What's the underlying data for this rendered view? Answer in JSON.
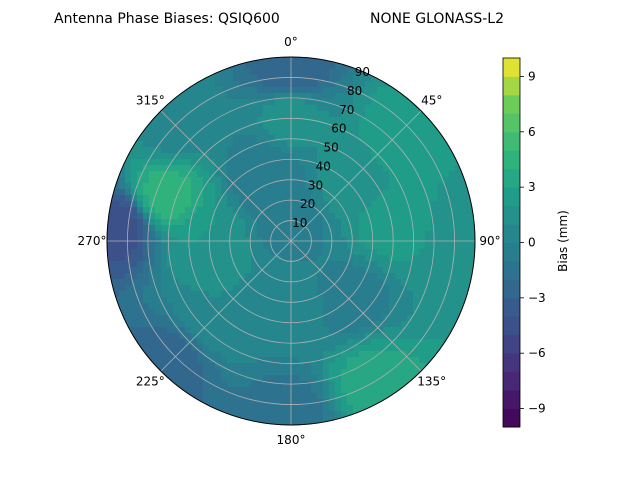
{
  "chart_data": {
    "type": "heatmap",
    "projection": "polar",
    "title": "Antenna Phase Biases: QSIQ600",
    "subtitle": "NONE GLONASS-L2",
    "theta_ticks": [
      "0°",
      "45°",
      "90°",
      "135°",
      "180°",
      "225°",
      "270°",
      "315°"
    ],
    "theta_tick_angles": [
      0,
      45,
      90,
      135,
      180,
      225,
      270,
      315
    ],
    "radial_ticks": [
      "10",
      "20",
      "30",
      "40",
      "50",
      "60",
      "70",
      "80",
      "90"
    ],
    "radial_tick_values": [
      10,
      20,
      30,
      40,
      50,
      60,
      70,
      80,
      90
    ],
    "rlim": [
      0,
      90
    ],
    "grid": true,
    "colorbar": {
      "label": "Bias (mm)",
      "range": [
        -10,
        10
      ],
      "ticks": [
        "−9",
        "−6",
        "−3",
        "0",
        "3",
        "6",
        "9"
      ],
      "tick_values": [
        -9,
        -6,
        -3,
        0,
        3,
        6,
        9
      ],
      "levels": 20,
      "colormap": "viridis"
    },
    "bias_field": [
      {
        "azimuth": 0,
        "elevation": 10,
        "bias": -0.5
      },
      {
        "azimuth": 0,
        "elevation": 60,
        "bias": 1.5
      },
      {
        "azimuth": 0,
        "elevation": 85,
        "bias": -3.0
      },
      {
        "azimuth": 45,
        "elevation": 40,
        "bias": 1.5
      },
      {
        "azimuth": 45,
        "elevation": 75,
        "bias": 2.5
      },
      {
        "azimuth": 80,
        "elevation": 50,
        "bias": 2.5
      },
      {
        "azimuth": 90,
        "elevation": 85,
        "bias": 1.5
      },
      {
        "azimuth": 135,
        "elevation": 40,
        "bias": -0.5
      },
      {
        "azimuth": 150,
        "elevation": 80,
        "bias": 3.5
      },
      {
        "azimuth": 180,
        "elevation": 30,
        "bias": 0.5
      },
      {
        "azimuth": 180,
        "elevation": 85,
        "bias": -1.5
      },
      {
        "azimuth": 225,
        "elevation": 50,
        "bias": 1.0
      },
      {
        "azimuth": 225,
        "elevation": 85,
        "bias": -2.5
      },
      {
        "azimuth": 270,
        "elevation": 40,
        "bias": 2.0
      },
      {
        "azimuth": 275,
        "elevation": 85,
        "bias": -4.5
      },
      {
        "azimuth": 290,
        "elevation": 65,
        "bias": 4.5
      },
      {
        "azimuth": 315,
        "elevation": 80,
        "bias": 0.5
      },
      {
        "azimuth": 340,
        "elevation": 35,
        "bias": -1.0
      }
    ]
  }
}
